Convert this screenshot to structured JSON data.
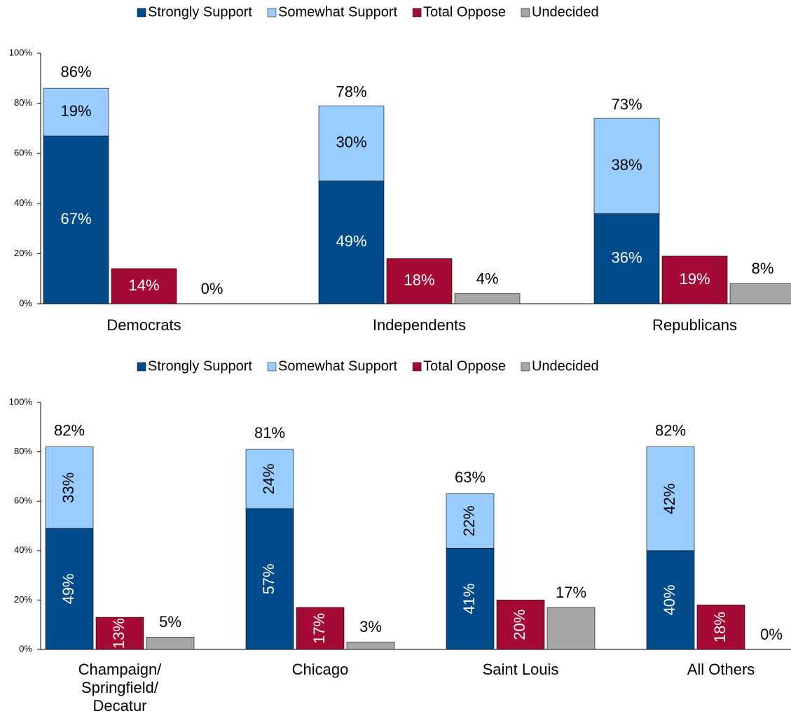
{
  "chart_data": [
    {
      "type": "bar",
      "stacked_groups": true,
      "categories": [
        "Democrats",
        "Independents",
        "Republicans"
      ],
      "series": [
        {
          "name": "Strongly Support",
          "color": "#004b8b",
          "stack": 1,
          "values": [
            67,
            49,
            36
          ],
          "value_labels": [
            "67%",
            "49%",
            "36%"
          ]
        },
        {
          "name": "Somewhat Support",
          "color": "#99ccff",
          "stack": 1,
          "values": [
            19,
            30,
            38
          ],
          "value_labels": [
            "19%",
            "30%",
            "38%"
          ]
        },
        {
          "name": "Total Oppose",
          "color": "#a50a35",
          "stack": 2,
          "values": [
            14,
            18,
            19
          ],
          "value_labels": [
            "14%",
            "18%",
            "19%"
          ]
        },
        {
          "name": "Undecided",
          "color": "#a6a6a6",
          "stack": 3,
          "values": [
            0,
            4,
            8
          ],
          "value_labels": [
            "0%",
            "4%",
            "8%"
          ]
        }
      ],
      "totals": [
        86,
        78,
        73
      ],
      "totals_labels": [
        "86%",
        "78%",
        "73%"
      ],
      "ylim": [
        0,
        100
      ],
      "yticks": [
        {
          "value": 0,
          "label": "0%"
        },
        {
          "value": 20,
          "label": "20%"
        },
        {
          "value": 40,
          "label": "40%"
        },
        {
          "value": 60,
          "label": "60%"
        },
        {
          "value": 80,
          "label": "80%"
        },
        {
          "value": 100,
          "label": "100%"
        }
      ],
      "legend": "top",
      "vertical_labels": false
    },
    {
      "type": "bar",
      "stacked_groups": true,
      "categories": [
        "Champaign/Springfield/Decatur",
        "Chicago",
        "Saint Louis",
        "All Others"
      ],
      "series": [
        {
          "name": "Strongly Support",
          "color": "#004b8b",
          "stack": 1,
          "values": [
            49,
            57,
            41,
            40
          ],
          "value_labels": [
            "49%",
            "57%",
            "41%",
            "40%"
          ]
        },
        {
          "name": "Somewhat Support",
          "color": "#99ccff",
          "stack": 1,
          "values": [
            33,
            24,
            22,
            42
          ],
          "value_labels": [
            "33%",
            "24%",
            "22%",
            "42%"
          ]
        },
        {
          "name": "Total Oppose",
          "color": "#a50a35",
          "stack": 2,
          "values": [
            13,
            17,
            20,
            18
          ],
          "value_labels": [
            "13%",
            "17%",
            "20%",
            "18%"
          ]
        },
        {
          "name": "Undecided",
          "color": "#a6a6a6",
          "stack": 3,
          "values": [
            5,
            3,
            17,
            0
          ],
          "value_labels": [
            "5%",
            "3%",
            "17%",
            "0%"
          ]
        }
      ],
      "totals": [
        82,
        81,
        63,
        82
      ],
      "totals_labels": [
        "82%",
        "81%",
        "63%",
        "82%"
      ],
      "ylim": [
        0,
        100
      ],
      "yticks": [
        {
          "value": 0,
          "label": "0%"
        },
        {
          "value": 20,
          "label": "20%"
        },
        {
          "value": 40,
          "label": "40%"
        },
        {
          "value": 60,
          "label": "60%"
        },
        {
          "value": 80,
          "label": "80%"
        },
        {
          "value": 100,
          "label": "100%"
        }
      ],
      "legend": "top",
      "vertical_labels": true
    }
  ]
}
